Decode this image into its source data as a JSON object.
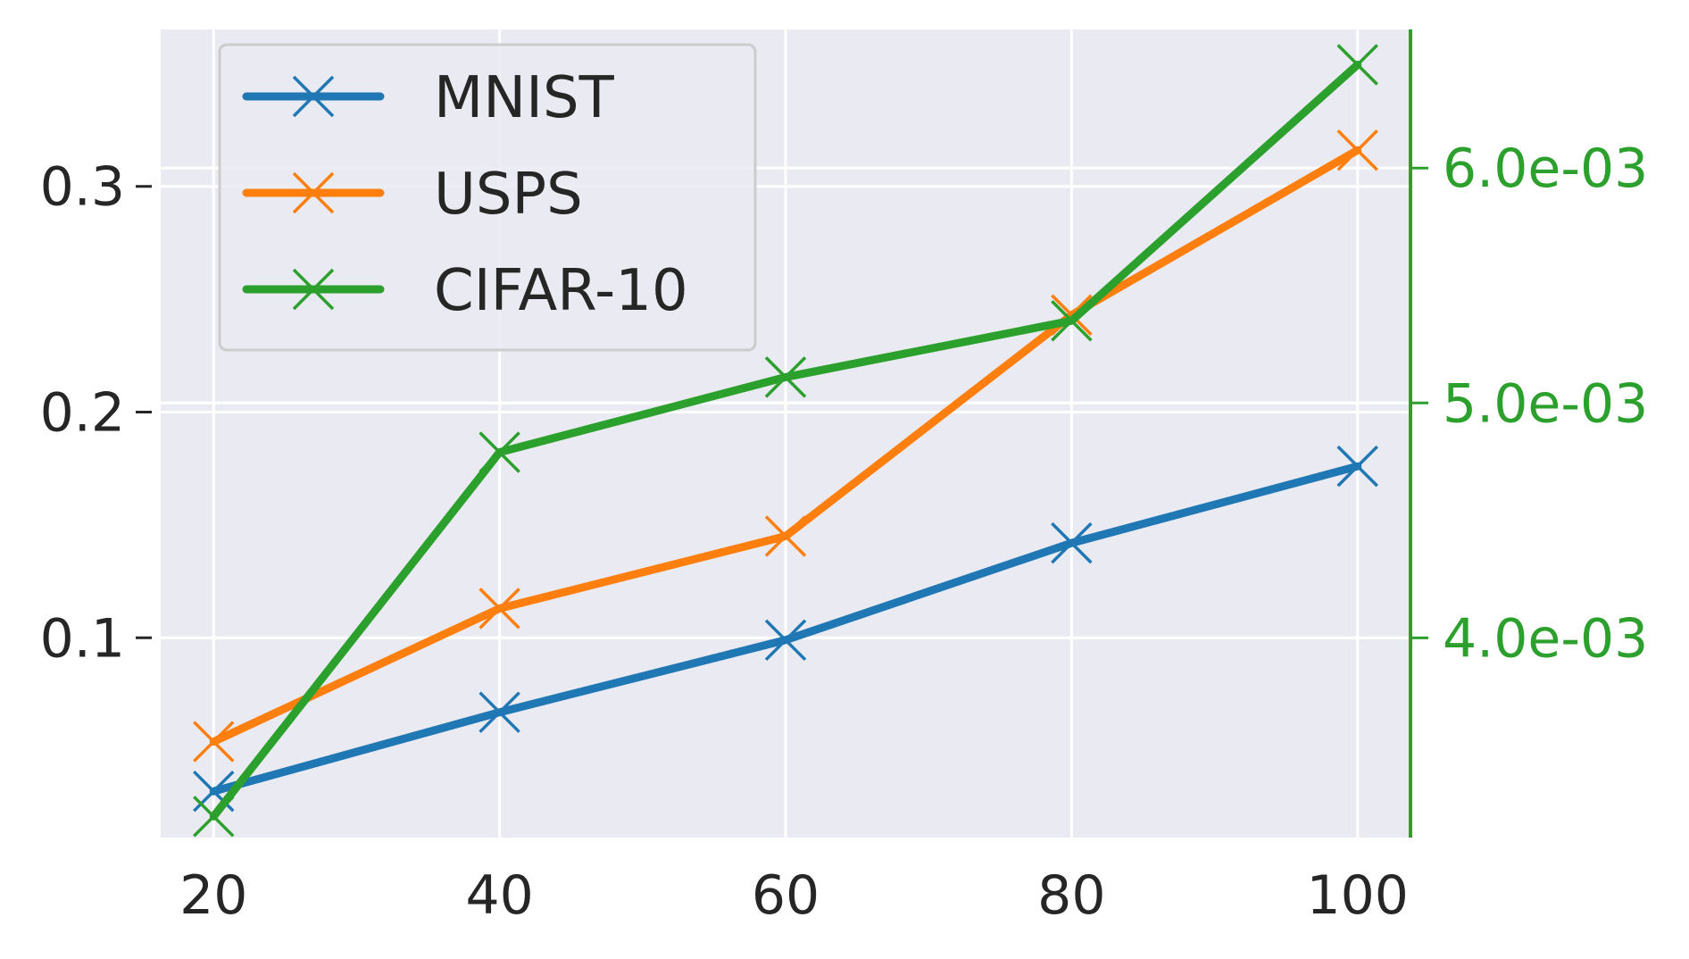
{
  "chart_data": {
    "type": "line",
    "x": [
      20,
      40,
      60,
      80,
      100
    ],
    "x_ticks": [
      "20",
      "40",
      "60",
      "80",
      "100"
    ],
    "xlim": [
      16.3,
      103.7
    ],
    "series": [
      {
        "name": "MNIST",
        "axis": "left",
        "color": "#1f77b4",
        "values": [
          0.032,
          0.067,
          0.099,
          0.142,
          0.176
        ]
      },
      {
        "name": "USPS",
        "axis": "left",
        "color": "#ff7f0e",
        "values": [
          0.054,
          0.113,
          0.145,
          0.243,
          0.316
        ]
      },
      {
        "name": "CIFAR-10",
        "axis": "right",
        "color": "#2ca02c",
        "values": [
          0.00324,
          0.00479,
          0.00511,
          0.00535,
          0.00644
        ]
      }
    ],
    "y_left": {
      "ylim": [
        0.0115,
        0.3695
      ],
      "ticks": [
        "0.1",
        "0.2",
        "0.3"
      ],
      "tick_values": [
        0.1,
        0.2,
        0.3
      ]
    },
    "y_right": {
      "ylim": [
        0.00315,
        0.00659
      ],
      "ticks": [
        "4.0e-03",
        "5.0e-03",
        "6.0e-03"
      ],
      "tick_values": [
        0.004,
        0.005,
        0.006
      ],
      "color": "#2ca02c"
    },
    "marker": "x",
    "grid": true,
    "legend_position": "upper-left",
    "background": "#eaeaf2"
  }
}
